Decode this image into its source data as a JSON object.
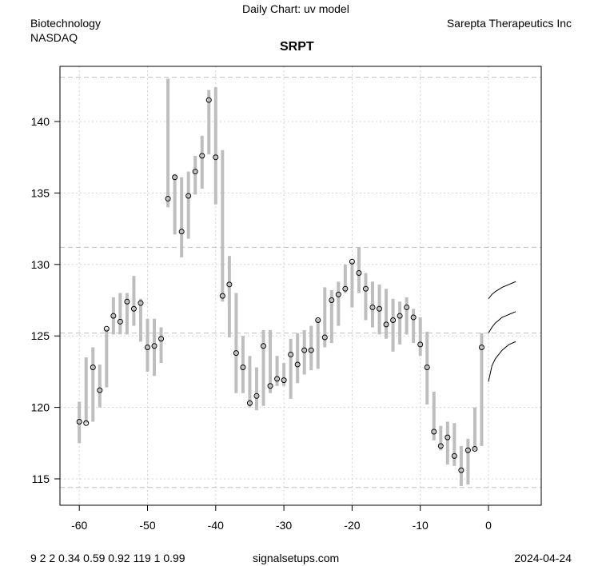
{
  "header": {
    "chart_type": "Daily Chart: uv model",
    "sector": "Biotechnology",
    "exchange": "NASDAQ",
    "company": "Sarepta Therapeutics Inc",
    "ticker": "SRPT"
  },
  "footer": {
    "params": "9 2 2 0.34 0.59 0.92 119 1 0.99",
    "site": "signalsetups.com",
    "date": "2024-04-24"
  },
  "chart_data": {
    "type": "range-bar",
    "title": "SRPT",
    "xlim": [
      -62,
      6
    ],
    "ylim": [
      114,
      144.5
    ],
    "x_ticks": [
      "-60",
      "-50",
      "-40",
      "-30",
      "-20",
      "-10",
      "0"
    ],
    "x_tick_values": [
      -60,
      -50,
      -40,
      -30,
      -20,
      -10,
      0
    ],
    "y_ticks": [
      "115",
      "120",
      "125",
      "130",
      "135",
      "140"
    ],
    "y_tick_values": [
      115,
      120,
      125,
      130,
      135,
      140
    ],
    "grid": true,
    "reference_lines": [
      143.1,
      131.2,
      125.2,
      114.4
    ],
    "bars": {
      "x": [
        -60,
        -59,
        -58,
        -57,
        -56,
        -55,
        -54,
        -53,
        -52,
        -51,
        -50,
        -49,
        -48,
        -47,
        -46,
        -45,
        -44,
        -43,
        -42,
        -41,
        -40,
        -39,
        -38,
        -37,
        -36,
        -35,
        -34,
        -33,
        -32,
        -31,
        -30,
        -29,
        -28,
        -27,
        -26,
        -25,
        -24,
        -23,
        -22,
        -21,
        -20,
        -19,
        -18,
        -17,
        -16,
        -15,
        -14,
        -13,
        -12,
        -11,
        -10,
        -9,
        -8,
        -7,
        -6,
        -5,
        -4,
        -3,
        -2,
        -1
      ],
      "low": [
        117.5,
        118.9,
        119.0,
        120.0,
        121.4,
        125.1,
        125.1,
        125.1,
        125.7,
        124.6,
        122.5,
        122.2,
        123.1,
        134.0,
        132.1,
        130.5,
        131.8,
        134.9,
        135.3,
        137.7,
        134.2,
        127.4,
        124.9,
        121.0,
        121.0,
        120.0,
        119.8,
        120.1,
        121.0,
        121.5,
        121.5,
        120.6,
        121.7,
        122.3,
        122.6,
        122.7,
        124.2,
        124.5,
        125.7,
        128.0,
        127.0,
        128.0,
        126.1,
        125.6,
        125.1,
        124.8,
        123.9,
        124.4,
        125.1,
        124.5,
        123.6,
        120.2,
        117.7,
        117.0,
        116.0,
        115.9,
        114.5,
        114.6,
        117.0,
        117.3
      ],
      "high": [
        120.4,
        123.5,
        124.2,
        123.0,
        125.5,
        127.7,
        128.0,
        128.0,
        129.2,
        127.6,
        126.2,
        126.2,
        125.6,
        143.0,
        136.3,
        136.1,
        136.5,
        137.6,
        139.0,
        142.2,
        142.4,
        138.0,
        130.6,
        128.0,
        125.0,
        123.6,
        122.8,
        125.4,
        125.4,
        123.6,
        123.1,
        124.8,
        125.2,
        125.4,
        125.7,
        126.2,
        128.4,
        128.2,
        128.8,
        130.0,
        130.2,
        131.2,
        129.4,
        128.8,
        128.6,
        128.3,
        127.6,
        127.4,
        127.7,
        126.9,
        126.3,
        125.3,
        121.1,
        118.7,
        119.0,
        118.9,
        117.3,
        117.8,
        120.0,
        125.2
      ],
      "close": [
        119.0,
        118.9,
        122.8,
        121.2,
        125.5,
        126.4,
        126.0,
        127.4,
        126.9,
        127.3,
        124.2,
        124.3,
        124.8,
        134.6,
        136.1,
        132.3,
        134.8,
        136.5,
        137.6,
        141.5,
        137.5,
        127.8,
        128.6,
        123.8,
        122.8,
        120.3,
        120.8,
        124.3,
        121.5,
        122.0,
        121.9,
        123.7,
        123.0,
        124.0,
        124.0,
        126.1,
        124.9,
        127.5,
        127.9,
        128.3,
        130.2,
        129.4,
        128.3,
        127.0,
        126.9,
        125.8,
        126.1,
        126.4,
        127.0,
        126.3,
        124.4,
        122.8,
        118.3,
        117.3,
        117.9,
        116.6,
        115.6,
        117.0,
        117.1,
        124.2
      ]
    },
    "forecast": {
      "x": [
        0,
        0.5,
        1,
        2,
        3,
        4
      ],
      "series": [
        {
          "name": "upper",
          "values": [
            127.6,
            127.9,
            128.1,
            128.4,
            128.6,
            128.8
          ]
        },
        {
          "name": "mid",
          "values": [
            125.2,
            125.6,
            125.9,
            126.3,
            126.5,
            126.7
          ]
        },
        {
          "name": "lower",
          "values": [
            121.8,
            122.9,
            123.4,
            124.0,
            124.4,
            124.6
          ]
        }
      ]
    },
    "colors": {
      "bar": "#bebebe",
      "grid": "#d3d3d3",
      "ref": "#bebebe",
      "forecast": "#000000"
    }
  }
}
